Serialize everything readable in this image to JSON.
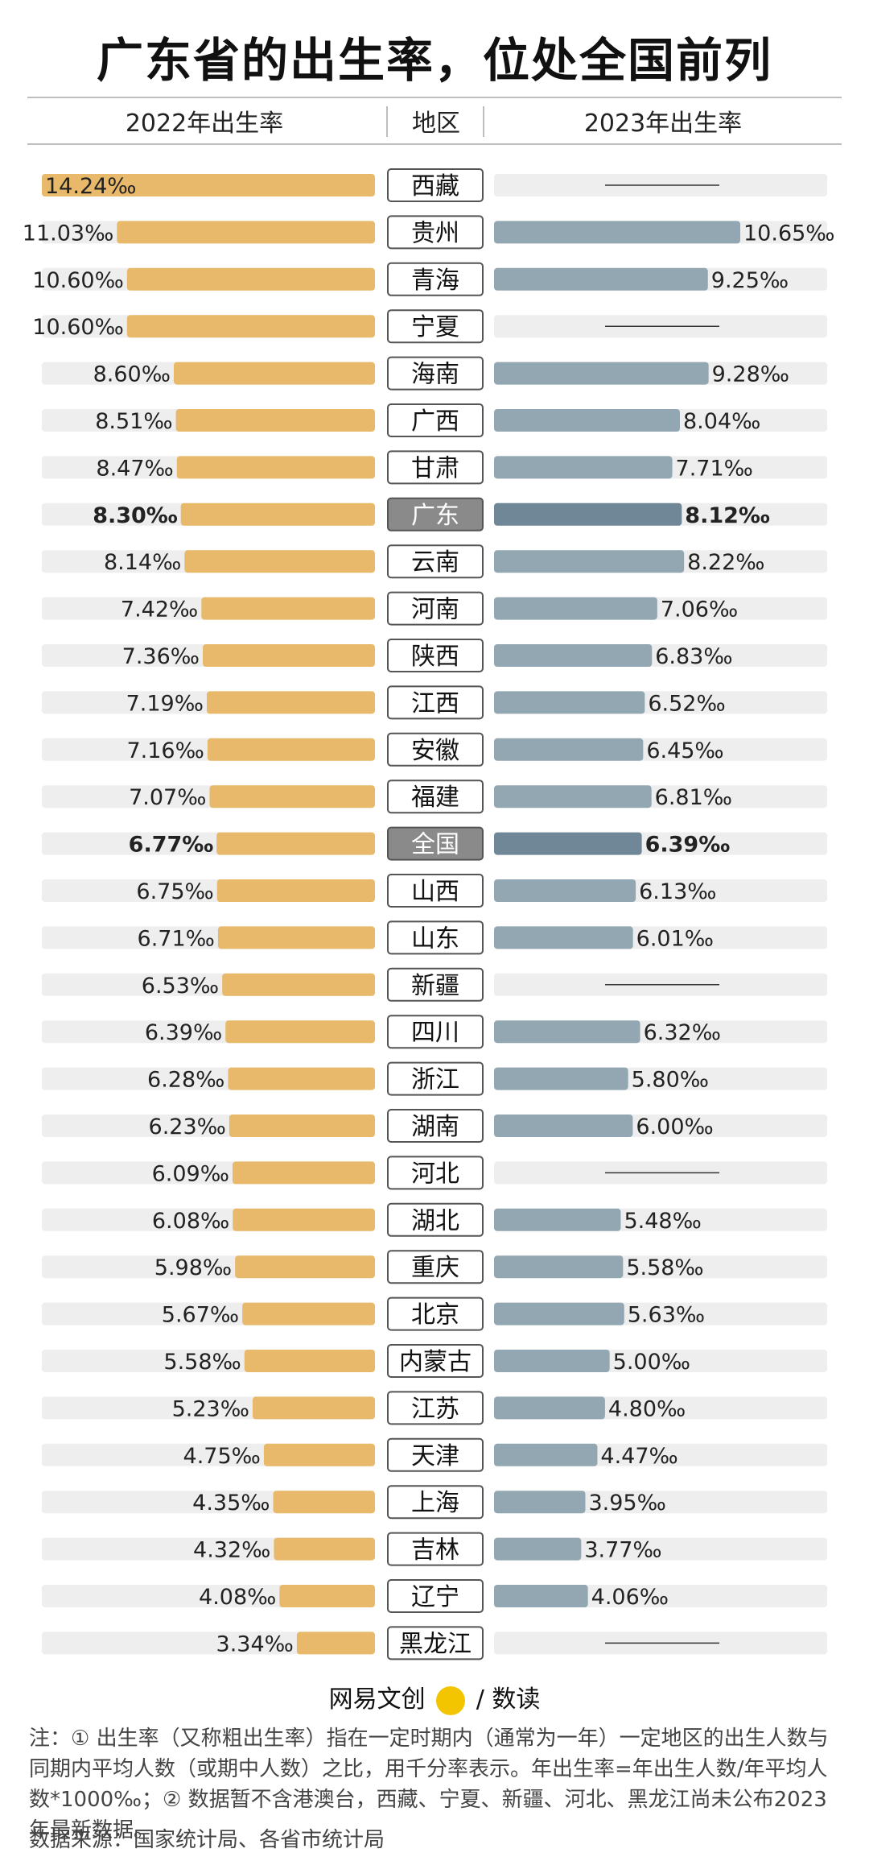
{
  "title": "广东省的出生率，位处全国前列",
  "headers": {
    "left": "2022年出生率",
    "middle": "地区",
    "right": "2023年出生率"
  },
  "colors": {
    "bar2022": "#e8b96a",
    "bar2023": "#93a7b3",
    "bar2023_highlight": "#6f8796",
    "track": "#eeeeee",
    "label_box_highlight": "#8a8a8a"
  },
  "chart_data": {
    "type": "bar",
    "unit": "‰",
    "categories": [
      "西藏",
      "贵州",
      "青海",
      "宁夏",
      "海南",
      "广西",
      "甘肃",
      "广东",
      "云南",
      "河南",
      "陕西",
      "江西",
      "安徽",
      "福建",
      "全国",
      "山西",
      "山东",
      "新疆",
      "四川",
      "浙江",
      "湖南",
      "河北",
      "湖北",
      "重庆",
      "北京",
      "内蒙古",
      "江苏",
      "天津",
      "上海",
      "吉林",
      "辽宁",
      "黑龙江"
    ],
    "highlight": [
      "广东",
      "全国"
    ],
    "series": [
      {
        "name": "2022年出生率",
        "values": [
          14.24,
          11.03,
          10.6,
          10.6,
          8.6,
          8.51,
          8.47,
          8.3,
          8.14,
          7.42,
          7.36,
          7.19,
          7.16,
          7.07,
          6.77,
          6.75,
          6.71,
          6.53,
          6.39,
          6.28,
          6.23,
          6.09,
          6.08,
          5.98,
          5.67,
          5.58,
          5.23,
          4.75,
          4.35,
          4.32,
          4.08,
          3.34
        ]
      },
      {
        "name": "2023年出生率",
        "values": [
          null,
          10.65,
          9.25,
          null,
          9.28,
          8.04,
          7.71,
          8.12,
          8.22,
          7.06,
          6.83,
          6.52,
          6.45,
          6.81,
          6.39,
          6.13,
          6.01,
          null,
          6.32,
          5.8,
          6.0,
          null,
          5.48,
          5.58,
          5.63,
          5.0,
          4.8,
          4.47,
          3.95,
          3.77,
          4.06,
          null
        ]
      }
    ]
  },
  "brand": {
    "name": "网易文创",
    "badge": "NetEase",
    "suffix": "/ 数读"
  },
  "note": "注：① 出生率（又称粗出生率）指在一定时期内（通常为一年）一定地区的出生人数与同期内平均人数（或期中人数）之比，用千分率表示。年出生率=年出生人数/年平均人数*1000‰；② 数据暂不含港澳台，西藏、宁夏、新疆、河北、黑龙江尚未公布2023年最新数据。",
  "source": "数据来源：国家统计局、各省市统计局"
}
